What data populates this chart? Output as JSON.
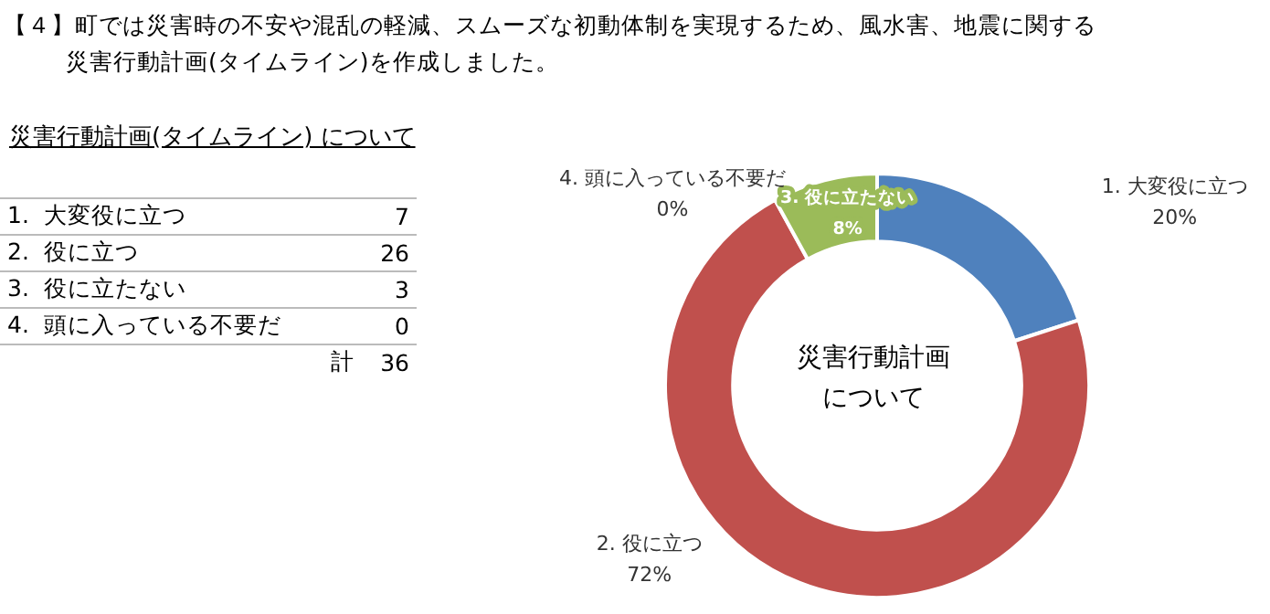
{
  "chart_data": [
    {
      "type": "donut",
      "title": "【４】町では災害時の不安や混乱の軽減、スムーズな初動体制を実現するため、風水害、地震に関する災害行動計画(タイムライン)を作成しました。",
      "categories": [
        "1. 大変役に立つ",
        "2. 役に立つ",
        "3. 役に立たない",
        "4. 頭に入っている不要だ"
      ],
      "values": [
        20,
        72,
        8,
        0
      ],
      "colors": [
        "#4f81bd",
        "#c0504d",
        "#9bbb59",
        "#8064a2"
      ],
      "value_labels": [
        "20%",
        "72%",
        "8%",
        "0%"
      ],
      "annotations": [
        "災害行動計画について"
      ],
      "legend": false
    },
    {
      "type": "other",
      "subtitle": "災害行動計画(タイムライン) について",
      "categories": [
        "1.  大変役に立つ",
        "2.  役に立つ",
        "3.  役に立たない",
        "4.  頭に入っている不要だ"
      ],
      "values": [
        7,
        26,
        3,
        0
      ],
      "data_labels": true,
      "totals": [
        "36"
      ],
      "annotations": [
        "計"
      ]
    }
  ]
}
